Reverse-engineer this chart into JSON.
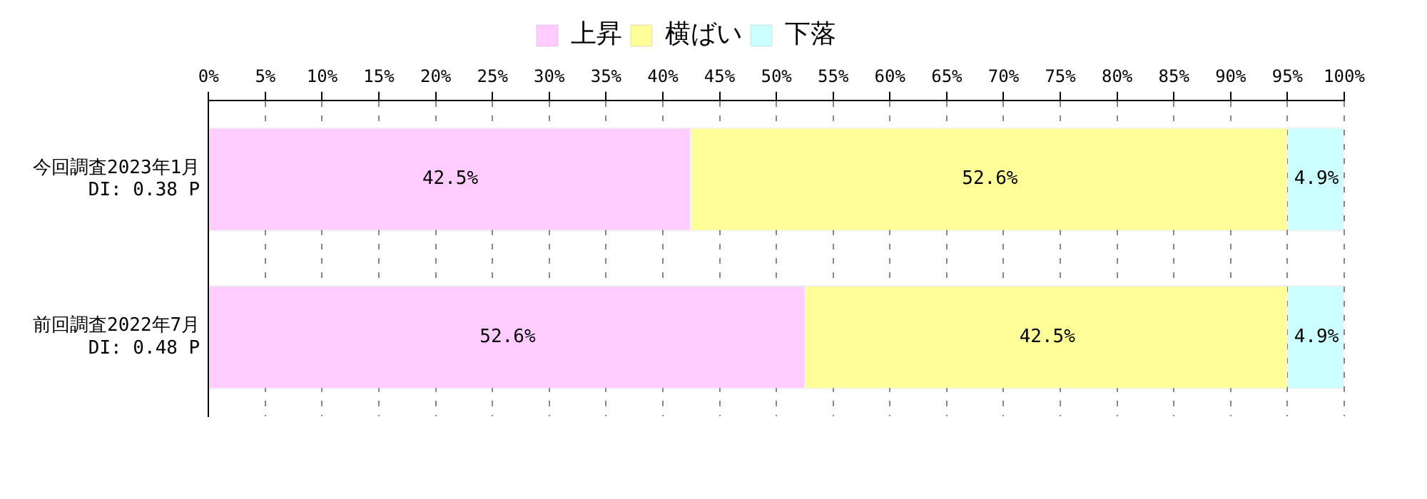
{
  "chart_data": {
    "type": "bar",
    "orientation": "horizontal",
    "stacked": true,
    "categories": [
      "今回調査2023年1月\n DI: 0.38 P",
      "前回調査2022年7月\n DI: 0.48 P"
    ],
    "series": [
      {
        "name": "上昇",
        "color": "#ffccff",
        "values": [
          42.5,
          52.6
        ],
        "value_labels": [
          "42.5%",
          "52.6%"
        ]
      },
      {
        "name": "横ばい",
        "color": "#ffff99",
        "values": [
          52.6,
          42.5
        ],
        "value_labels": [
          "52.6%",
          "42.5%"
        ]
      },
      {
        "name": "下落",
        "color": "#ccffff",
        "values": [
          4.9,
          4.9
        ],
        "value_labels": [
          "4.9%",
          "4.9%"
        ]
      }
    ],
    "xlim": [
      0,
      100
    ],
    "xticks": [
      {
        "value": 0,
        "label": "0%"
      },
      {
        "value": 5,
        "label": "5%"
      },
      {
        "value": 10,
        "label": "10%"
      },
      {
        "value": 15,
        "label": "15%"
      },
      {
        "value": 20,
        "label": "20%"
      },
      {
        "value": 25,
        "label": "25%"
      },
      {
        "value": 30,
        "label": "30%"
      },
      {
        "value": 35,
        "label": "35%"
      },
      {
        "value": 40,
        "label": "40%"
      },
      {
        "value": 45,
        "label": "45%"
      },
      {
        "value": 50,
        "label": "50%"
      },
      {
        "value": 55,
        "label": "55%"
      },
      {
        "value": 60,
        "label": "60%"
      },
      {
        "value": 65,
        "label": "65%"
      },
      {
        "value": 70,
        "label": "70%"
      },
      {
        "value": 75,
        "label": "75%"
      },
      {
        "value": 80,
        "label": "80%"
      },
      {
        "value": 85,
        "label": "85%"
      },
      {
        "value": 90,
        "label": "90%"
      },
      {
        "value": 95,
        "label": "95%"
      },
      {
        "value": 100,
        "label": "100%"
      }
    ],
    "grid": "x",
    "legend": "top"
  }
}
